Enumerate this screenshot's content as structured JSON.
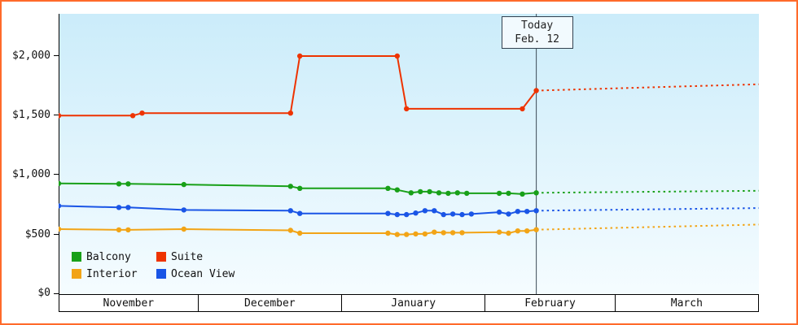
{
  "chart_data": {
    "type": "line",
    "title": "",
    "y_axis": {
      "tick_labels": [
        "$0",
        "$500",
        "$1,000",
        "$1,500",
        "$2,000"
      ],
      "max": 2000,
      "ylim": [
        0,
        2000
      ]
    },
    "x_axis": {
      "months": [
        "November",
        "December",
        "January",
        "February",
        "March"
      ],
      "month_days": [
        30,
        31,
        31,
        28,
        31
      ],
      "total_days": 151
    },
    "today": {
      "line1": "Today",
      "line2": "Feb. 12",
      "day_index": 103
    },
    "colors": {
      "frame_border": "#ff6a2a",
      "axis": "#000000",
      "today_line": "#3c4a56",
      "plot_bg_top": "#cbecfa",
      "plot_bg_bottom": "#f5fcff"
    },
    "legend": {
      "items": [
        "Balcony",
        "Suite",
        "Interior",
        "Ocean View"
      ]
    },
    "series": [
      {
        "name": "Balcony",
        "color": "#18a018",
        "solid": [
          [
            0,
            930
          ],
          [
            13,
            926
          ],
          [
            15,
            926
          ],
          [
            27,
            921
          ],
          [
            50,
            906
          ],
          [
            52,
            889
          ],
          [
            71,
            889
          ],
          [
            73,
            876
          ],
          [
            76,
            851
          ],
          [
            78,
            861
          ],
          [
            80,
            861
          ],
          [
            82,
            851
          ],
          [
            84,
            847
          ],
          [
            86,
            851
          ],
          [
            88,
            847
          ],
          [
            95,
            847
          ],
          [
            97,
            847
          ],
          [
            100,
            841
          ],
          [
            103,
            851
          ]
        ],
        "projected": [
          [
            103,
            851
          ],
          [
            151,
            868
          ]
        ]
      },
      {
        "name": "Suite",
        "color": "#ee3300",
        "solid": [
          [
            0,
            1500
          ],
          [
            16,
            1500
          ],
          [
            18,
            1521
          ],
          [
            50,
            1521
          ],
          [
            52,
            2000
          ],
          [
            73,
            2000
          ],
          [
            75,
            1557
          ],
          [
            100,
            1557
          ],
          [
            103,
            1710
          ]
        ],
        "projected": [
          [
            103,
            1710
          ],
          [
            151,
            1763
          ]
        ]
      },
      {
        "name": "Interior",
        "color": "#f2a416",
        "solid": [
          [
            0,
            546
          ],
          [
            13,
            540
          ],
          [
            15,
            540
          ],
          [
            27,
            546
          ],
          [
            50,
            536
          ],
          [
            52,
            512
          ],
          [
            71,
            512
          ],
          [
            73,
            501
          ],
          [
            75,
            501
          ],
          [
            77,
            506
          ],
          [
            79,
            506
          ],
          [
            81,
            521
          ],
          [
            83,
            516
          ],
          [
            85,
            516
          ],
          [
            87,
            516
          ],
          [
            95,
            521
          ],
          [
            97,
            512
          ],
          [
            99,
            531
          ],
          [
            101,
            531
          ],
          [
            103,
            541
          ]
        ],
        "projected": [
          [
            103,
            541
          ],
          [
            151,
            584
          ]
        ]
      },
      {
        "name": "Ocean View",
        "color": "#1a55e6",
        "solid": [
          [
            0,
            741
          ],
          [
            13,
            728
          ],
          [
            15,
            728
          ],
          [
            27,
            707
          ],
          [
            50,
            701
          ],
          [
            52,
            678
          ],
          [
            71,
            678
          ],
          [
            73,
            668
          ],
          [
            75,
            668
          ],
          [
            77,
            681
          ],
          [
            79,
            701
          ],
          [
            81,
            701
          ],
          [
            83,
            668
          ],
          [
            85,
            673
          ],
          [
            87,
            668
          ],
          [
            89,
            673
          ],
          [
            95,
            689
          ],
          [
            97,
            673
          ],
          [
            99,
            695
          ],
          [
            101,
            695
          ],
          [
            103,
            701
          ]
        ],
        "projected": [
          [
            103,
            701
          ],
          [
            151,
            723
          ]
        ]
      }
    ]
  }
}
